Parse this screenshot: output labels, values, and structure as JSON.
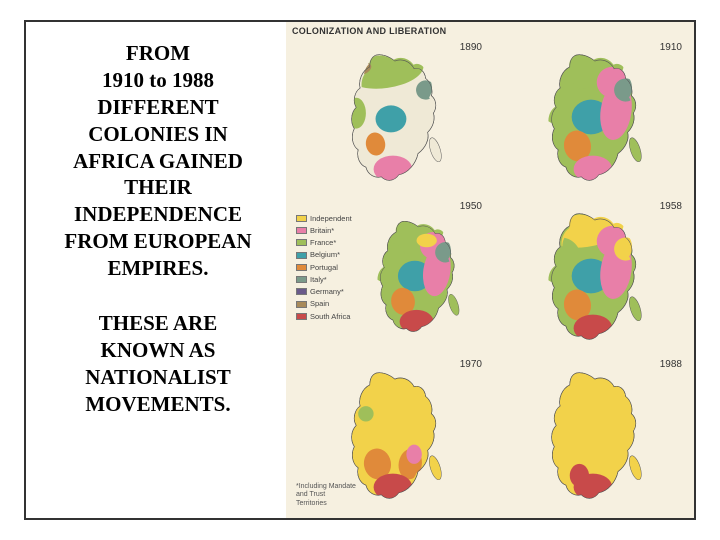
{
  "text": {
    "block1": "FROM\n1910 to 1988\nDIFFERENT\nCOLONIES IN\nAFRICA GAINED\nTHEIR\nINDEPENDENCE\nFROM EUROPEAN\nEMPIRES.",
    "block2": "THESE ARE\nKNOWN AS\nNATIONALIST\nMOVEMENTS."
  },
  "chart": {
    "title": "COLONIZATION AND LIBERATION",
    "background": "#f6f0e0",
    "years": [
      "1890",
      "1910",
      "1950",
      "1958",
      "1970",
      "1988"
    ],
    "colors": {
      "independent": "#f2d24a",
      "britain": "#e87fa8",
      "france": "#9fbf5a",
      "belgium": "#3fa0a8",
      "portugal": "#e08a3a",
      "italy": "#7a9a8a",
      "germany": "#6a5a8a",
      "spain": "#a88a5a",
      "south_africa": "#c84a4a",
      "uncolonized": "#efe9d6"
    },
    "legend": [
      {
        "label": "Independent",
        "color": "#f2d24a"
      },
      {
        "label": "Britain*",
        "color": "#e87fa8"
      },
      {
        "label": "France*",
        "color": "#9fbf5a"
      },
      {
        "label": "Belgium*",
        "color": "#3fa0a8"
      },
      {
        "label": "Portugal",
        "color": "#e08a3a"
      },
      {
        "label": "Italy*",
        "color": "#7a9a8a"
      },
      {
        "label": "Germany*",
        "color": "#6a5a8a"
      },
      {
        "label": "Spain",
        "color": "#a88a5a"
      },
      {
        "label": "South Africa",
        "color": "#c84a4a"
      }
    ],
    "footnote": "*Including Mandate\nand Trust\nTerritories",
    "maps": {
      "1890": {
        "dominant": "uncolonized",
        "north": "france",
        "south_tip": "britain",
        "west_coast": "france",
        "congo": "belgium",
        "east_horn": "italy",
        "nw_coast": "spain",
        "sw_coast": "portugal"
      },
      "1910": {
        "dominant": "france",
        "north": "france",
        "south_tip": "britain",
        "center": "belgium",
        "east": "britain",
        "west": "france",
        "sw": "portugal",
        "horn": "italy",
        "ne": "britain"
      },
      "1950": {
        "dominant": "france",
        "north": "france",
        "south_tip": "south_africa",
        "center": "belgium",
        "east": "britain",
        "west": "france",
        "sw": "portugal",
        "horn": "italy",
        "ne": "britain",
        "indep1": "independent"
      },
      "1958": {
        "dominant": "france",
        "north": "independent",
        "south_tip": "south_africa",
        "center": "belgium",
        "east": "britain",
        "west": "france",
        "sw": "portugal",
        "horn": "independent",
        "ne": "britain"
      },
      "1970": {
        "dominant": "independent",
        "sw": "portugal",
        "se": "portugal",
        "south_tip": "south_africa",
        "remnant1": "france",
        "remnant2": "britain"
      },
      "1988": {
        "dominant": "independent",
        "south_tip": "south_africa",
        "namibia": "south_africa"
      }
    }
  }
}
